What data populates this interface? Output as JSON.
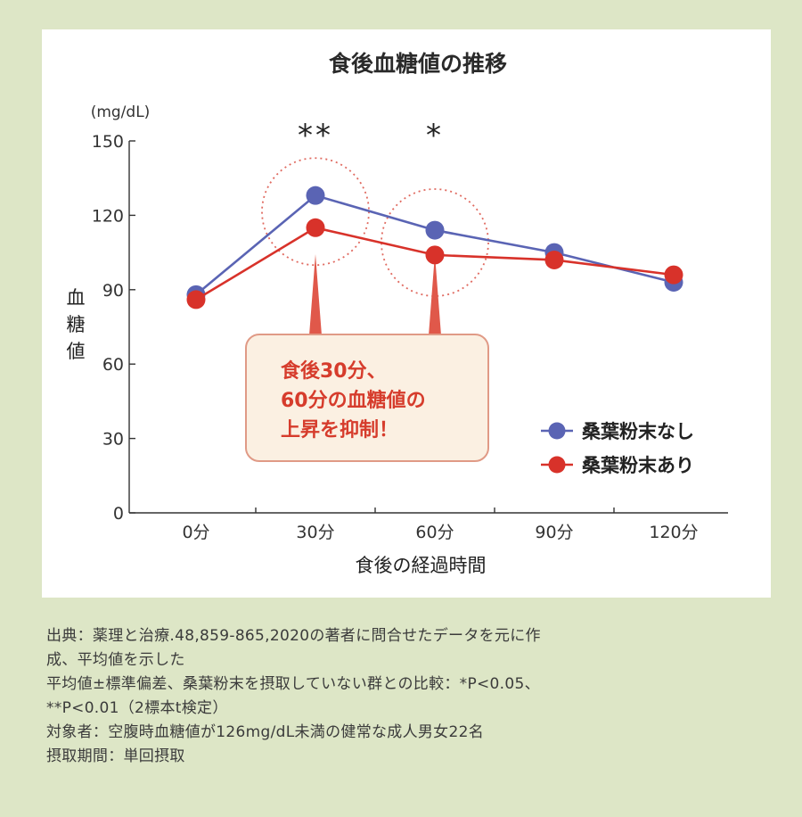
{
  "chart_data": {
    "type": "line",
    "title": "食後血糖値の推移",
    "xlabel": "食後の経過時間",
    "ylabel": "血糖値",
    "yunit": "(mg/dL)",
    "categories": [
      "0分",
      "30分",
      "60分",
      "90分",
      "120分"
    ],
    "ylim": [
      0,
      150
    ],
    "yticks": [
      0,
      30,
      60,
      90,
      120,
      150
    ],
    "series": [
      {
        "name": "桑葉粉末なし",
        "color": "#5a64b4",
        "values": [
          88,
          128,
          114,
          105,
          93
        ]
      },
      {
        "name": "桑葉粉末あり",
        "color": "#d8322a",
        "values": [
          86,
          115,
          104,
          102,
          96
        ]
      }
    ],
    "significance": [
      "",
      "**",
      "*",
      "",
      ""
    ],
    "legend_position": "right",
    "grid": false,
    "callout_lines": [
      "食後30分、",
      "60分の血糖値の",
      "上昇を抑制！"
    ]
  },
  "notes": [
    "出典：薬理と治療.48,859-865,2020の著者に問合せたデータを元に作",
    "成、平均値を示した",
    "平均値±標準偏差、桑葉粉末を摂取していない群との比較：*P<0.05、",
    "**P<0.01（2標本t検定）",
    "対象者：空腹時血糖値が126mg/dL未満の健常な成人男女22名",
    "摂取期間：単回摂取"
  ],
  "colors": {
    "background": "#dde6c6",
    "panel": "#ffffff",
    "callout_fill": "#fbf0e2",
    "callout_border": "#e09a86",
    "callout_text": "#d63c2c",
    "highlight_circle": "#e06a60"
  }
}
